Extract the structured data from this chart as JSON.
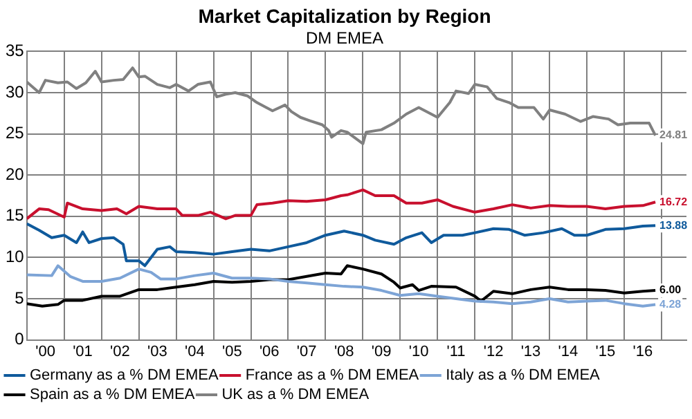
{
  "chart_data": {
    "type": "line",
    "title": "Market Capitalization by Region",
    "subtitle": "DM EMEA",
    "xlim": [
      "2000-01",
      "2017-09"
    ],
    "xticks": [
      {
        "value": "2000-07",
        "label": "'00"
      },
      {
        "value": "2001-01",
        "label": null
      },
      {
        "value": "2001-07",
        "label": "'01"
      },
      {
        "value": "2002-01",
        "label": null
      },
      {
        "value": "2002-07",
        "label": "'02"
      },
      {
        "value": "2003-01",
        "label": null
      },
      {
        "value": "2003-07",
        "label": "'03"
      },
      {
        "value": "2004-01",
        "label": null
      },
      {
        "value": "2004-07",
        "label": "'04"
      },
      {
        "value": "2005-01",
        "label": null
      },
      {
        "value": "2005-07",
        "label": "'05"
      },
      {
        "value": "2006-01",
        "label": null
      },
      {
        "value": "2006-07",
        "label": "'06"
      },
      {
        "value": "2007-01",
        "label": null
      },
      {
        "value": "2007-07",
        "label": "'07"
      },
      {
        "value": "2008-01",
        "label": null
      },
      {
        "value": "2008-07",
        "label": "'08"
      },
      {
        "value": "2009-01",
        "label": null
      },
      {
        "value": "2009-07",
        "label": "'09"
      },
      {
        "value": "2010-01",
        "label": null
      },
      {
        "value": "2010-07",
        "label": "'10"
      },
      {
        "value": "2011-01",
        "label": null
      },
      {
        "value": "2011-07",
        "label": "'11"
      },
      {
        "value": "2012-01",
        "label": null
      },
      {
        "value": "2012-07",
        "label": "'12"
      },
      {
        "value": "2013-01",
        "label": null
      },
      {
        "value": "2013-07",
        "label": "'13"
      },
      {
        "value": "2014-01",
        "label": null
      },
      {
        "value": "2014-07",
        "label": "'14"
      },
      {
        "value": "2015-01",
        "label": null
      },
      {
        "value": "2015-07",
        "label": "'15"
      },
      {
        "value": "2016-01",
        "label": null
      },
      {
        "value": "2016-07",
        "label": "'16"
      },
      {
        "value": "2017-01",
        "label": null
      }
    ],
    "ylim": [
      0,
      35
    ],
    "yticks": [
      0,
      5,
      10,
      15,
      20,
      25,
      30,
      35
    ],
    "grid": true,
    "legend": "bottom",
    "marker": "none",
    "line_style": "solid",
    "series": [
      {
        "name": "Germany as a % DM EMEA",
        "color": "#0f5a9c",
        "x": [
          "2000-01",
          "2000-05",
          "2000-09",
          "2001-01",
          "2001-05",
          "2001-07",
          "2001-09",
          "2002-01",
          "2002-05",
          "2002-08",
          "2002-09",
          "2003-01",
          "2003-03",
          "2003-07",
          "2003-11",
          "2004-01",
          "2004-07",
          "2005-01",
          "2005-07",
          "2006-01",
          "2006-07",
          "2007-01",
          "2007-07",
          "2008-01",
          "2008-07",
          "2009-01",
          "2009-05",
          "2009-11",
          "2010-03",
          "2010-08",
          "2010-11",
          "2011-03",
          "2011-09",
          "2012-01",
          "2012-07",
          "2012-12",
          "2013-05",
          "2013-11",
          "2014-05",
          "2014-09",
          "2015-01",
          "2015-07",
          "2016-01",
          "2016-07",
          "2016-11"
        ],
        "values": [
          14.1,
          13.3,
          12.4,
          12.7,
          11.8,
          13.1,
          11.8,
          12.3,
          12.4,
          11.6,
          9.6,
          9.6,
          9.0,
          11.0,
          11.3,
          10.7,
          10.6,
          10.4,
          10.7,
          11.0,
          10.8,
          11.3,
          11.8,
          12.7,
          13.2,
          12.7,
          12.1,
          11.6,
          12.4,
          13.0,
          11.8,
          12.7,
          12.7,
          13.0,
          13.5,
          13.4,
          12.7,
          13.0,
          13.5,
          12.7,
          12.7,
          13.4,
          13.5,
          13.8,
          13.88
        ],
        "value_labels": [
          null,
          null,
          null,
          null,
          null,
          null,
          null,
          null,
          null,
          null,
          null,
          null,
          null,
          null,
          null,
          null,
          null,
          null,
          null,
          null,
          null,
          null,
          null,
          null,
          null,
          null,
          null,
          null,
          null,
          null,
          null,
          null,
          null,
          null,
          null,
          null,
          null,
          null,
          null,
          null,
          null,
          null,
          null,
          null,
          "13.88"
        ]
      },
      {
        "name": "France as a % DM EMEA",
        "color": "#c8102e",
        "x": [
          "2000-01",
          "2000-05",
          "2000-08",
          "2001-01",
          "2001-02",
          "2001-07",
          "2002-01",
          "2002-06",
          "2002-09",
          "2003-01",
          "2003-07",
          "2004-01",
          "2004-03",
          "2004-08",
          "2004-12",
          "2005-05",
          "2005-08",
          "2006-01",
          "2006-03",
          "2006-08",
          "2007-01",
          "2007-07",
          "2008-01",
          "2008-06",
          "2008-08",
          "2009-01",
          "2009-05",
          "2009-11",
          "2010-03",
          "2010-08",
          "2011-01",
          "2011-06",
          "2012-01",
          "2012-07",
          "2013-01",
          "2013-07",
          "2014-01",
          "2014-07",
          "2015-01",
          "2015-07",
          "2016-01",
          "2016-07",
          "2016-11"
        ],
        "values": [
          14.7,
          15.9,
          15.8,
          14.9,
          16.6,
          15.9,
          15.7,
          15.9,
          15.3,
          16.2,
          15.9,
          15.9,
          15.1,
          15.1,
          15.5,
          14.7,
          15.1,
          15.1,
          16.4,
          16.6,
          16.9,
          16.8,
          17.0,
          17.5,
          17.6,
          18.2,
          17.5,
          17.5,
          16.6,
          16.6,
          17.0,
          16.2,
          15.5,
          15.9,
          16.4,
          16.0,
          16.3,
          16.2,
          16.2,
          15.9,
          16.2,
          16.3,
          16.72
        ],
        "value_labels": [
          null,
          null,
          null,
          null,
          null,
          null,
          null,
          null,
          null,
          null,
          null,
          null,
          null,
          null,
          null,
          null,
          null,
          null,
          null,
          null,
          null,
          null,
          null,
          null,
          null,
          null,
          null,
          null,
          null,
          null,
          null,
          null,
          null,
          null,
          null,
          null,
          null,
          null,
          null,
          null,
          null,
          null,
          "16.72"
        ]
      },
      {
        "name": "Italy as a % DM EMEA",
        "color": "#7da4d6",
        "x": [
          "2000-01",
          "2000-09",
          "2000-11",
          "2001-03",
          "2001-07",
          "2002-01",
          "2002-07",
          "2003-01",
          "2003-05",
          "2003-08",
          "2004-01",
          "2004-07",
          "2005-01",
          "2005-07",
          "2006-01",
          "2006-07",
          "2007-01",
          "2007-07",
          "2008-01",
          "2008-07",
          "2009-01",
          "2009-07",
          "2010-01",
          "2010-07",
          "2011-01",
          "2011-07",
          "2012-01",
          "2012-07",
          "2013-01",
          "2013-07",
          "2014-01",
          "2014-07",
          "2015-01",
          "2015-07",
          "2016-01",
          "2016-07",
          "2016-11"
        ],
        "values": [
          7.9,
          7.8,
          9.0,
          7.7,
          7.1,
          7.1,
          7.5,
          8.6,
          8.2,
          7.4,
          7.4,
          7.8,
          8.1,
          7.5,
          7.5,
          7.4,
          7.1,
          6.9,
          6.7,
          6.5,
          6.4,
          6.0,
          5.4,
          5.6,
          5.3,
          5.0,
          4.7,
          4.6,
          4.4,
          4.6,
          5.0,
          4.6,
          4.7,
          4.8,
          4.4,
          4.1,
          4.28
        ],
        "value_labels": [
          null,
          null,
          null,
          null,
          null,
          null,
          null,
          null,
          null,
          null,
          null,
          null,
          null,
          null,
          null,
          null,
          null,
          null,
          null,
          null,
          null,
          null,
          null,
          null,
          null,
          null,
          null,
          null,
          null,
          null,
          null,
          null,
          null,
          null,
          null,
          null,
          "4.28"
        ]
      },
      {
        "name": "Spain as a % DM EMEA",
        "color": "#000000",
        "x": [
          "2000-01",
          "2000-06",
          "2000-11",
          "2001-01",
          "2001-07",
          "2002-01",
          "2002-07",
          "2003-01",
          "2003-07",
          "2004-01",
          "2004-07",
          "2005-01",
          "2005-07",
          "2006-01",
          "2006-07",
          "2007-01",
          "2007-07",
          "2008-01",
          "2008-06",
          "2008-08",
          "2009-01",
          "2009-07",
          "2009-11",
          "2010-01",
          "2010-05",
          "2010-07",
          "2010-11",
          "2011-07",
          "2012-01",
          "2012-03",
          "2012-07",
          "2013-01",
          "2013-07",
          "2014-01",
          "2014-07",
          "2015-01",
          "2015-07",
          "2016-01",
          "2016-07",
          "2016-11"
        ],
        "values": [
          4.4,
          4.1,
          4.3,
          4.8,
          4.8,
          5.3,
          5.3,
          6.1,
          6.1,
          6.4,
          6.7,
          7.1,
          7.0,
          7.1,
          7.3,
          7.3,
          7.7,
          8.1,
          8.0,
          9.0,
          8.6,
          8.0,
          7.0,
          6.3,
          6.7,
          6.0,
          6.5,
          6.4,
          5.3,
          4.7,
          5.9,
          5.6,
          6.1,
          6.4,
          6.1,
          6.1,
          6.0,
          5.7,
          5.9,
          6.0
        ],
        "value_labels": [
          null,
          null,
          null,
          null,
          null,
          null,
          null,
          null,
          null,
          null,
          null,
          null,
          null,
          null,
          null,
          null,
          null,
          null,
          null,
          null,
          null,
          null,
          null,
          null,
          null,
          null,
          null,
          null,
          null,
          null,
          null,
          null,
          null,
          null,
          null,
          null,
          null,
          null,
          null,
          "6.00"
        ]
      },
      {
        "name": "UK as a % DM EMEA",
        "color": "#808080",
        "x": [
          "2000-01",
          "2000-05",
          "2000-07",
          "2000-11",
          "2001-02",
          "2001-05",
          "2001-08",
          "2001-11",
          "2002-01",
          "2002-05",
          "2002-08",
          "2002-11",
          "2003-01",
          "2003-03",
          "2003-07",
          "2003-11",
          "2004-01",
          "2004-05",
          "2004-08",
          "2004-12",
          "2005-02",
          "2005-05",
          "2005-08",
          "2005-12",
          "2006-03",
          "2006-06",
          "2006-08",
          "2006-12",
          "2007-02",
          "2007-05",
          "2007-08",
          "2007-12",
          "2008-02",
          "2008-03",
          "2008-06",
          "2008-08",
          "2009-01",
          "2009-02",
          "2009-07",
          "2009-11",
          "2010-03",
          "2010-07",
          "2010-11",
          "2011-01",
          "2011-05",
          "2011-07",
          "2011-11",
          "2012-01",
          "2012-05",
          "2012-08",
          "2012-12",
          "2013-03",
          "2013-08",
          "2013-11",
          "2014-01",
          "2014-06",
          "2014-11",
          "2015-03",
          "2015-08",
          "2015-11",
          "2016-03",
          "2016-09",
          "2016-11"
        ],
        "values": [
          31.3,
          30.0,
          31.5,
          31.2,
          31.3,
          30.5,
          31.2,
          32.6,
          31.3,
          31.5,
          31.6,
          33.0,
          31.9,
          32.0,
          31.0,
          30.6,
          31.0,
          30.2,
          31.0,
          31.3,
          29.5,
          29.8,
          30.0,
          29.6,
          28.8,
          28.2,
          27.8,
          28.5,
          27.7,
          27.0,
          26.6,
          26.1,
          25.4,
          24.6,
          25.4,
          25.2,
          23.8,
          25.2,
          25.5,
          26.3,
          27.4,
          28.2,
          27.4,
          27.0,
          28.8,
          30.2,
          29.9,
          31.0,
          30.7,
          29.3,
          28.8,
          28.2,
          28.2,
          26.8,
          27.9,
          27.4,
          26.5,
          27.1,
          26.8,
          26.1,
          26.3,
          26.3,
          24.81
        ],
        "value_labels": [
          null,
          null,
          null,
          null,
          null,
          null,
          null,
          null,
          null,
          null,
          null,
          null,
          null,
          null,
          null,
          null,
          null,
          null,
          null,
          null,
          null,
          null,
          null,
          null,
          null,
          null,
          null,
          null,
          null,
          null,
          null,
          null,
          null,
          null,
          null,
          null,
          null,
          null,
          null,
          null,
          null,
          null,
          null,
          null,
          null,
          null,
          null,
          null,
          null,
          null,
          null,
          null,
          null,
          null,
          null,
          null,
          null,
          null,
          null,
          null,
          null,
          null,
          "24.81"
        ]
      }
    ]
  }
}
